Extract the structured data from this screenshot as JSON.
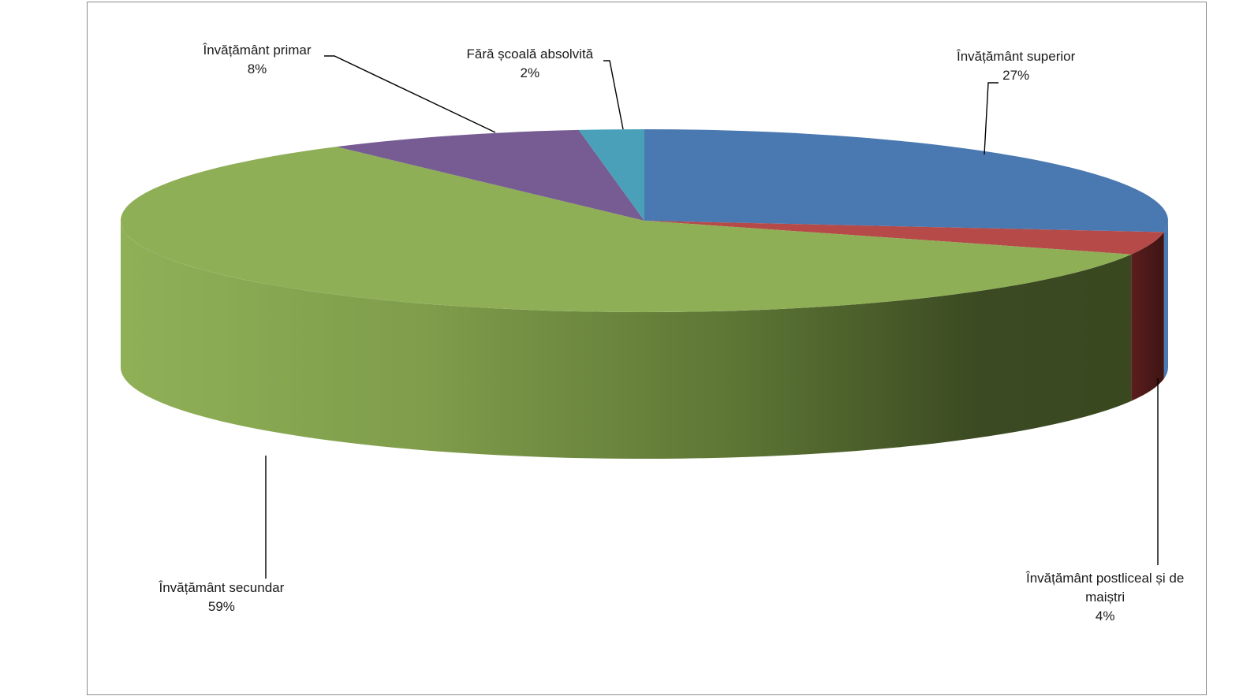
{
  "chart_data": {
    "type": "pie",
    "three_d": true,
    "title": "",
    "legend": "none",
    "slices": [
      {
        "label": "Învățământ superior",
        "value": 27,
        "display": "27%",
        "color": "#4a78b0"
      },
      {
        "label": "Învățământ postliceal și de maiștri",
        "value": 4,
        "display": "4%",
        "color": "#b54a48"
      },
      {
        "label": "Învățământ secundar",
        "value": 59,
        "display": "59%",
        "color": "#8faf57"
      },
      {
        "label": "Învățământ primar",
        "value": 8,
        "display": "8%",
        "color": "#765c92"
      },
      {
        "label": "Fără școală absolvită",
        "value": 2,
        "display": "2%",
        "color": "#4aa0b8"
      }
    ]
  }
}
